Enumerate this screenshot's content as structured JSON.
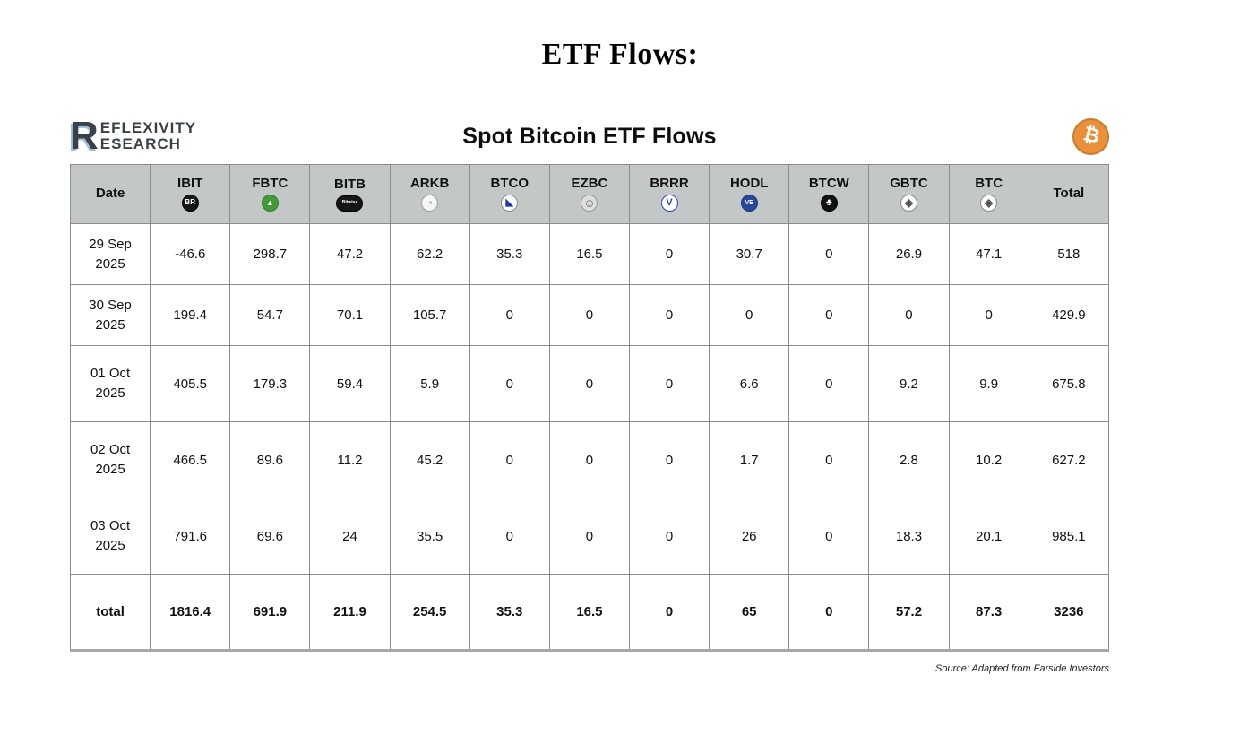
{
  "page_title": "ETF Flows:",
  "brand": {
    "r": "R",
    "line1": "EFLEXIVITY",
    "line2": "ESEARCH"
  },
  "card_title": "Spot Bitcoin ETF Flows",
  "bitcoin_symbol": "₿",
  "source_note": "Source: Adapted from Farside Investors",
  "colors": {
    "header_bg": "#c3c7c8",
    "table_border": "#8c8c8c",
    "bitcoin_orange": "#e8913a",
    "brand_charcoal": "#3a4147",
    "brand_blue_accent": "#9dbede"
  },
  "chart_data": {
    "type": "table",
    "title": "Spot Bitcoin ETF Flows",
    "columns": [
      "Date",
      "IBIT",
      "FBTC",
      "BITB",
      "ARKB",
      "BTCO",
      "EZBC",
      "BRRR",
      "HODL",
      "BTCW",
      "GBTC",
      "BTC",
      "Total"
    ],
    "column_icons": [
      null,
      {
        "name": "blackrock-ishares-icon",
        "text": "BR",
        "bg": "#161616",
        "fg": "#ffffff",
        "border": "#000000",
        "font_size": 8,
        "shape": "circle"
      },
      {
        "name": "fidelity-icon",
        "text": "▲",
        "bg": "#3f9c35",
        "fg": "#ffffff",
        "border": "#2e7d32",
        "font_size": 9,
        "shape": "circle"
      },
      {
        "name": "bitwise-icon",
        "text": "Bitwise",
        "bg": "#161616",
        "fg": "#ffffff",
        "border": "#000000",
        "font_size": 5,
        "shape": "ellipse"
      },
      {
        "name": "ark-invest-icon",
        "text": "◔",
        "bg": "#f7f7f7",
        "fg": "#9a9a9a",
        "border": "#9a9a9a",
        "font_size": 13,
        "shape": "circle"
      },
      {
        "name": "invesco-icon",
        "text": "◣",
        "bg": "#ffffff",
        "fg": "#2233bb",
        "border": "#8a8a8a",
        "font_size": 11,
        "shape": "circle"
      },
      {
        "name": "franklin-templeton-icon",
        "text": "☺",
        "bg": "#dedede",
        "fg": "#5a5a5a",
        "border": "#9a9a9a",
        "font_size": 13,
        "shape": "circle"
      },
      {
        "name": "valkyrie-icon",
        "text": "V",
        "bg": "#ffffff",
        "fg": "#2746c4",
        "border": "#2746c4",
        "font_size": 11,
        "shape": "circle"
      },
      {
        "name": "vaneck-icon",
        "text": "VE",
        "bg": "#27489b",
        "fg": "#ffffff",
        "border": "#1b3575",
        "font_size": 7,
        "shape": "circle"
      },
      {
        "name": "wisdomtree-icon",
        "text": "♣",
        "bg": "#111111",
        "fg": "#ffffff",
        "border": "#000000",
        "font_size": 11,
        "shape": "circle"
      },
      {
        "name": "grayscale-icon",
        "text": "◈",
        "bg": "#ffffff",
        "fg": "#4a4a4a",
        "border": "#8a8a8a",
        "font_size": 12,
        "shape": "circle"
      },
      {
        "name": "grayscale-mini-icon",
        "text": "◈",
        "bg": "#ffffff",
        "fg": "#4a4a4a",
        "border": "#8a8a8a",
        "font_size": 12,
        "shape": "circle"
      },
      null
    ],
    "rows": [
      {
        "date": "29 Sep 2025",
        "values": [
          -46.6,
          298.7,
          47.2,
          62.2,
          35.3,
          16.5,
          0,
          30.7,
          0,
          26.9,
          47.1
        ],
        "total": 518
      },
      {
        "date": "30 Sep 2025",
        "values": [
          199.4,
          54.7,
          70.1,
          105.7,
          0,
          0,
          0,
          0,
          0,
          0,
          0
        ],
        "total": 429.9
      },
      {
        "date": "01 Oct 2025",
        "values": [
          405.5,
          179.3,
          59.4,
          5.9,
          0,
          0,
          0,
          6.6,
          0,
          9.2,
          9.9
        ],
        "total": 675.8
      },
      {
        "date": "02 Oct 2025",
        "values": [
          466.5,
          89.6,
          11.2,
          45.2,
          0,
          0,
          0,
          1.7,
          0,
          2.8,
          10.2
        ],
        "total": 627.2
      },
      {
        "date": "03 Oct 2025",
        "values": [
          791.6,
          69.6,
          24,
          35.5,
          0,
          0,
          0,
          26,
          0,
          18.3,
          20.1
        ],
        "total": 985.1
      }
    ],
    "total_row": {
      "label": "total",
      "values": [
        1816.4,
        691.9,
        211.9,
        254.5,
        35.3,
        16.5,
        0,
        65,
        0,
        57.2,
        87.3
      ],
      "total": 3236
    }
  }
}
